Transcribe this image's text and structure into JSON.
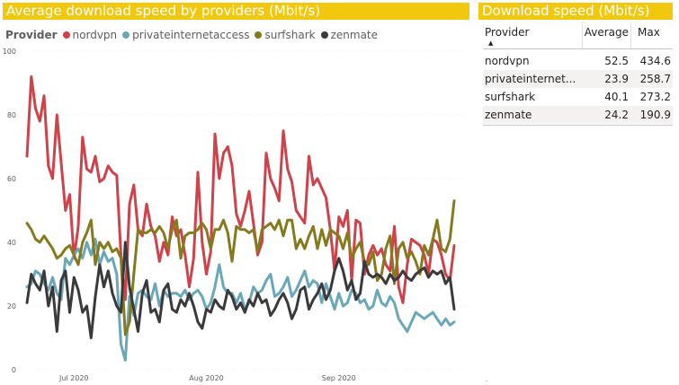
{
  "chart": {
    "title": "Average download speed by providers (Mbit/s)",
    "legend_title": "Provider"
  },
  "chart_data": {
    "type": "line",
    "title": "Average download speed by providers (Mbit/s)",
    "xlabel": "",
    "ylabel": "",
    "ylim": [
      0,
      100
    ],
    "yticks": [
      0,
      20,
      40,
      60,
      80,
      100
    ],
    "xticks": [
      {
        "label": "Jul 2020",
        "day": 11
      },
      {
        "label": "Aug 2020",
        "day": 42
      },
      {
        "label": "Sep 2020",
        "day": 73
      }
    ],
    "x_start": "2020-06-20",
    "grid": true,
    "legend": "top-left",
    "series": [
      {
        "name": "nordvpn",
        "color": "#d0424a",
        "values": [
          67,
          92,
          82,
          78,
          86,
          64,
          60,
          80,
          65,
          50,
          55,
          35,
          45,
          73,
          63,
          62,
          67,
          59,
          60,
          64,
          62,
          61,
          36,
          22,
          52,
          58,
          44,
          42,
          52,
          45,
          42,
          34,
          40,
          36,
          48,
          42,
          44,
          36,
          26,
          35,
          62,
          40,
          30,
          37,
          74,
          60,
          68,
          70,
          64,
          49,
          45,
          50,
          56,
          46,
          36,
          40,
          68,
          60,
          57,
          53,
          75,
          63,
          59,
          50,
          48,
          46,
          67,
          58,
          60,
          57,
          54,
          44,
          31,
          48,
          45,
          50,
          28,
          47,
          46,
          30,
          36,
          39,
          36,
          38,
          33,
          31,
          45,
          26,
          21,
          33,
          41,
          40,
          39,
          36,
          30,
          41,
          40,
          36,
          30,
          28,
          39
        ]
      },
      {
        "name": "privateinternetaccess",
        "color": "#6aa7b8",
        "values": [
          26,
          27,
          31,
          30,
          27,
          25,
          29,
          24,
          22,
          35,
          33,
          36,
          38,
          35,
          40,
          36,
          41,
          33,
          37,
          34,
          35,
          30,
          8,
          3,
          23,
          17,
          24,
          25,
          23,
          22,
          27,
          20,
          25,
          23,
          24,
          24,
          23,
          25,
          22,
          24,
          25,
          23,
          19,
          21,
          26,
          33,
          26,
          24,
          24,
          21,
          24,
          19,
          21,
          26,
          24,
          25,
          28,
          30,
          23,
          24,
          26,
          29,
          23,
          25,
          28,
          31,
          26,
          28,
          27,
          21,
          27,
          23,
          19,
          24,
          20,
          21,
          25,
          24,
          21,
          22,
          19,
          20,
          25,
          21,
          20,
          23,
          21,
          16,
          14,
          12,
          15,
          18,
          17,
          16,
          17,
          18,
          16,
          14,
          16,
          14,
          15
        ]
      },
      {
        "name": "surfshark",
        "color": "#857a1e",
        "values": [
          46,
          44,
          41,
          40,
          42,
          40,
          38,
          35,
          36,
          38,
          39,
          36,
          33,
          40,
          43,
          47,
          33,
          40,
          38,
          40,
          37,
          38,
          35,
          11,
          15,
          30,
          44,
          43,
          43,
          44,
          43,
          45,
          43,
          38,
          44,
          47,
          35,
          42,
          43,
          43,
          44,
          46,
          44,
          38,
          44,
          44,
          47,
          43,
          34,
          45,
          44,
          44,
          43,
          44,
          37,
          44,
          45,
          46,
          44,
          47,
          42,
          47,
          47,
          38,
          41,
          38,
          42,
          45,
          38,
          44,
          39,
          44,
          43,
          42,
          38,
          43,
          35,
          38,
          40,
          34,
          33,
          37,
          28,
          30,
          38,
          42,
          27,
          38,
          40,
          35,
          37,
          34,
          30,
          39,
          36,
          41,
          47,
          38,
          37,
          41,
          53
        ]
      },
      {
        "name": "zenmate",
        "color": "#3a393b",
        "values": [
          21,
          30,
          27,
          25,
          31,
          20,
          26,
          12,
          28,
          31,
          18,
          29,
          25,
          18,
          20,
          10,
          23,
          33,
          26,
          31,
          24,
          20,
          18,
          40,
          26,
          19,
          12,
          24,
          28,
          18,
          19,
          15,
          25,
          27,
          19,
          18,
          22,
          20,
          24,
          20,
          15,
          13,
          19,
          18,
          22,
          20,
          19,
          25,
          23,
          19,
          21,
          18,
          22,
          20,
          24,
          21,
          22,
          17,
          19,
          22,
          24,
          21,
          16,
          19,
          25,
          26,
          19,
          22,
          24,
          27,
          22,
          25,
          31,
          35,
          31,
          25,
          28,
          22,
          24,
          34,
          30,
          29,
          30,
          29,
          27,
          30,
          28,
          29,
          31,
          29,
          28,
          30,
          31,
          32,
          29,
          31,
          30,
          31,
          27,
          29,
          19
        ]
      }
    ]
  },
  "table": {
    "title": "Download speed (Mbit/s)",
    "headers": {
      "provider": "Provider",
      "average": "Average",
      "max": "Max"
    },
    "rows": [
      {
        "provider": "nordvpn",
        "average": "52.5",
        "max": "434.6"
      },
      {
        "provider": "privateinternet...",
        "average": "23.9",
        "max": "258.7"
      },
      {
        "provider": "surfshark",
        "average": "40.1",
        "max": "273.2"
      },
      {
        "provider": "zenmate",
        "average": "24.2",
        "max": "190.9"
      }
    ]
  }
}
